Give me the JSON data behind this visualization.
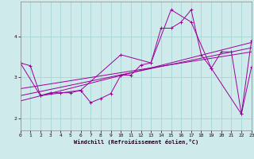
{
  "xlabel": "Windchill (Refroidissement éolien,°C)",
  "bg_color": "#ceeaea",
  "line_color": "#990099",
  "grid_color": "#aad8d8",
  "xmin": 0,
  "xmax": 23,
  "ymin": 1.7,
  "ymax": 4.85,
  "yticks": [
    2,
    3,
    4
  ],
  "xticks": [
    0,
    1,
    2,
    3,
    4,
    5,
    6,
    7,
    8,
    9,
    10,
    11,
    12,
    13,
    14,
    15,
    16,
    17,
    18,
    19,
    20,
    21,
    22,
    23
  ],
  "series1_x": [
    0,
    1,
    2,
    3,
    4,
    5,
    6,
    7,
    8,
    9,
    10,
    11,
    12,
    13,
    14,
    15,
    16,
    17,
    18,
    19,
    20,
    21,
    22,
    23
  ],
  "series1_y": [
    3.35,
    3.28,
    2.55,
    2.62,
    2.62,
    2.62,
    2.68,
    2.38,
    2.48,
    2.6,
    3.05,
    3.05,
    3.3,
    3.35,
    4.2,
    4.2,
    4.35,
    4.65,
    3.55,
    3.22,
    3.62,
    3.62,
    2.1,
    3.25
  ],
  "series2_x": [
    0,
    2,
    6,
    10,
    13,
    15,
    17,
    19,
    22,
    23
  ],
  "series2_y": [
    3.35,
    2.55,
    2.68,
    3.55,
    3.35,
    4.65,
    4.35,
    3.22,
    2.1,
    3.9
  ],
  "trend1_x": [
    0,
    23
  ],
  "trend1_y": [
    2.72,
    3.62
  ],
  "trend2_x": [
    0,
    23
  ],
  "trend2_y": [
    2.55,
    3.72
  ],
  "trend3_x": [
    0,
    23
  ],
  "trend3_y": [
    2.42,
    3.85
  ]
}
